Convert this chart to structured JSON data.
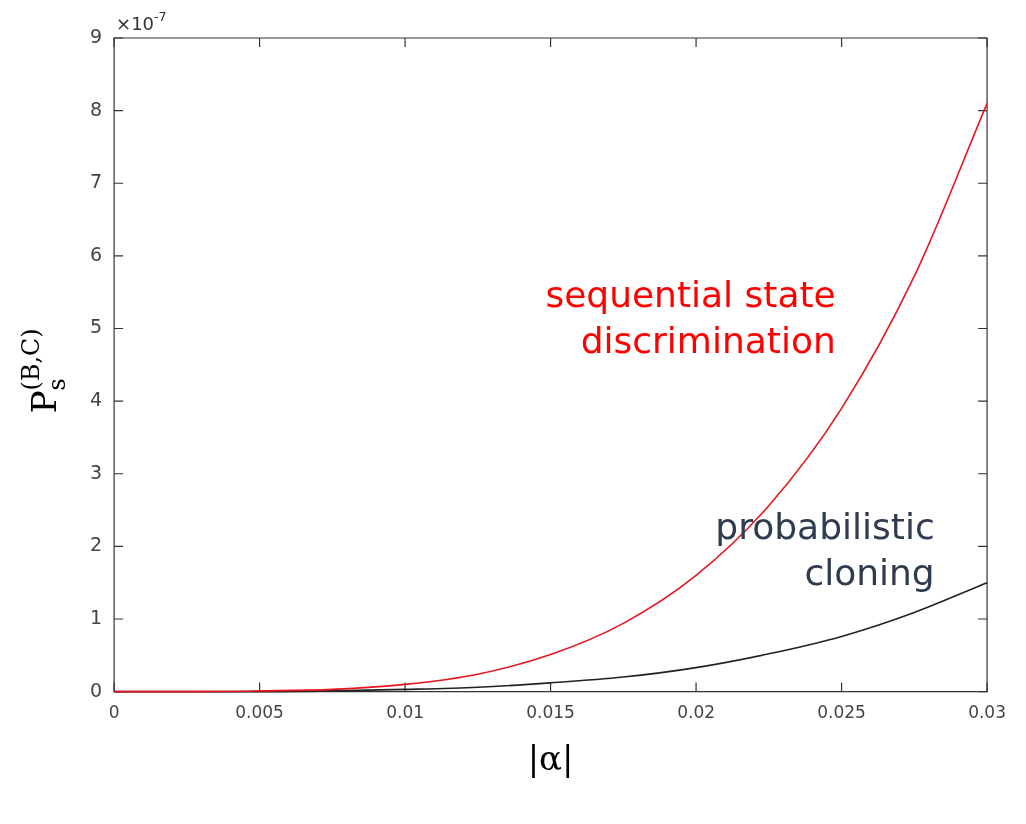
{
  "chart_data": {
    "type": "line",
    "xlabel": "|α|",
    "ylabel": "P$_{s}$$^{(B,C)}$",
    "annotations": [
      "×10$^{-7}$"
    ],
    "xlim": [
      0,
      0.03
    ],
    "xticks": [
      0,
      0.005,
      0.01,
      0.015,
      0.02,
      0.025,
      0.03
    ],
    "ylim": [
      0,
      9
    ],
    "yticks": [
      0,
      1,
      2,
      3,
      4,
      5,
      6,
      7,
      8,
      9
    ],
    "marker": "none",
    "line_style": "solid",
    "legend": false,
    "series": [
      {
        "name": "sequential state\ndiscrimination",
        "color": "#e8141e",
        "x": [
          0,
          0.0025,
          0.005,
          0.0075,
          0.01,
          0.0125,
          0.015,
          0.0175,
          0.02,
          0.0225,
          0.025,
          0.0275,
          0.03
        ],
        "values": [
          0,
          0,
          0.01,
          0.03,
          0.1,
          0.24,
          0.51,
          0.94,
          1.6,
          2.56,
          3.9,
          5.72,
          8.1
        ]
      },
      {
        "name": "probabilistic\ncloning",
        "color": "#222222",
        "x": [
          0,
          0.0025,
          0.005,
          0.0075,
          0.01,
          0.0125,
          0.015,
          0.0175,
          0.02,
          0.0225,
          0.025,
          0.0275,
          0.03
        ],
        "values": [
          0,
          0,
          0,
          0.01,
          0.03,
          0.06,
          0.12,
          0.2,
          0.33,
          0.52,
          0.76,
          1.09,
          1.5
        ]
      }
    ]
  }
}
